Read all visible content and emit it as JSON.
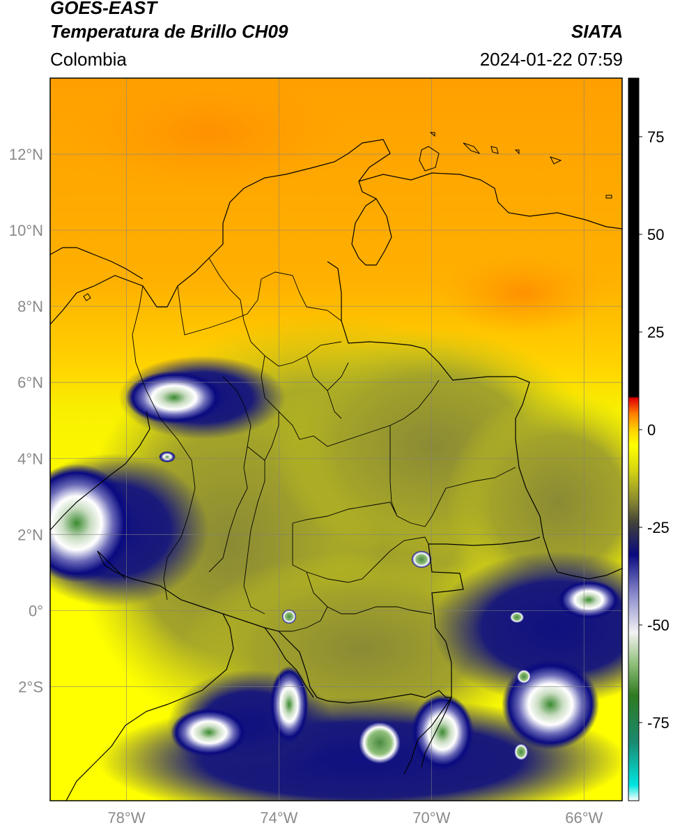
{
  "header": {
    "satellite": "GOES-EAST",
    "product": "Temperatura de Brillo CH09",
    "region": "Colombia",
    "agency": "SIATA",
    "datetime": "2024-01-22 07:59"
  },
  "map": {
    "lon_range": [
      -80,
      -65
    ],
    "lat_range": [
      -5,
      14
    ],
    "lat_ticks": [
      {
        "value": 12,
        "label": "12°N"
      },
      {
        "value": 10,
        "label": "10°N"
      },
      {
        "value": 8,
        "label": "8°N"
      },
      {
        "value": 6,
        "label": "6°N"
      },
      {
        "value": 4,
        "label": "4°N"
      },
      {
        "value": 2,
        "label": "2°N"
      },
      {
        "value": 0,
        "label": "0°"
      },
      {
        "value": -2,
        "label": "2°S"
      }
    ],
    "lon_ticks": [
      {
        "value": -78,
        "label": "78°W"
      },
      {
        "value": -74,
        "label": "74°W"
      },
      {
        "value": -70,
        "label": "70°W"
      },
      {
        "value": -66,
        "label": "66°W"
      }
    ],
    "gridlines": true
  },
  "colorbar": {
    "range": [
      -95,
      90
    ],
    "ticks": [
      {
        "value": 75,
        "label": "75"
      },
      {
        "value": 50,
        "label": "50"
      },
      {
        "value": 25,
        "label": "25"
      },
      {
        "value": 0,
        "label": "0"
      },
      {
        "value": -25,
        "label": "-25"
      },
      {
        "value": -50,
        "label": "-50"
      },
      {
        "value": -75,
        "label": "-75"
      }
    ],
    "stops": [
      {
        "value": -95,
        "color": "#ffffff"
      },
      {
        "value": -91,
        "color": "#00e5e0"
      },
      {
        "value": -80,
        "color": "#1a8a70"
      },
      {
        "value": -68,
        "color": "#2f7a20"
      },
      {
        "value": -60,
        "color": "#8fbf7a"
      },
      {
        "value": -52,
        "color": "#f2f2f2"
      },
      {
        "value": -42,
        "color": "#8888cc"
      },
      {
        "value": -32,
        "color": "#0a0a80"
      },
      {
        "value": -24,
        "color": "#40403a"
      },
      {
        "value": -18,
        "color": "#8a8a30"
      },
      {
        "value": -10,
        "color": "#d8d810"
      },
      {
        "value": -4,
        "color": "#ffff00"
      },
      {
        "value": 0,
        "color": "#ffd000"
      },
      {
        "value": 4,
        "color": "#ff8000"
      },
      {
        "value": 8,
        "color": "#e00000"
      },
      {
        "value": 8.5,
        "color": "#000000"
      },
      {
        "value": 90,
        "color": "#000000"
      }
    ]
  }
}
